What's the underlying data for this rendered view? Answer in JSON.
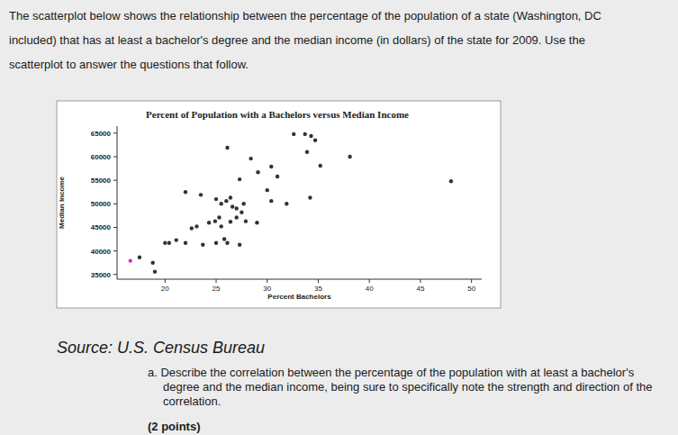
{
  "page": {
    "intro": [
      "The scatterplot below shows the relationship between the percentage of the population of a state (Washington, DC",
      "included) that has at least a bachelor's degree and the median income (in dollars) of the state for 2009. Use the",
      "scatterplot to answer the questions that follow."
    ],
    "source": "Source: U.S. Census Bureau",
    "question": [
      "a. Describe the correlation between the percentage of the population with at least a bachelor's",
      "degree and the median income, being sure to specifically note the strength and direction of the",
      "correlation."
    ],
    "points": "(2 points)"
  },
  "chart_data": {
    "type": "scatter",
    "title": "Percent of Population with a Bachelors versus Median Income",
    "x_label": "Percent Bachelors",
    "y_label": "Median Income",
    "x": [
      16.6,
      17.5,
      18.8,
      19.0,
      20.0,
      20.4,
      21.1,
      22.0,
      22.6,
      23.1,
      23.7,
      24.3,
      24.9,
      25.0,
      25.3,
      25.5,
      25.8,
      26.1,
      26.4,
      26.6,
      27.0,
      27.3,
      22.0,
      23.5,
      25.0,
      25.5,
      26.0,
      26.4,
      27.0,
      27.5,
      29.0,
      26.1,
      27.3,
      27.7,
      28.4,
      29.1,
      30.0,
      30.4,
      30.4,
      31.0,
      31.9,
      32.6,
      33.7,
      34.3,
      34.7,
      33.9,
      35.2,
      34.2,
      38.1,
      48.0,
      27.9
    ],
    "values": [
      37900,
      38650,
      37500,
      35600,
      41700,
      41700,
      42300,
      41700,
      44800,
      45200,
      41300,
      46000,
      46300,
      41700,
      47100,
      45200,
      42500,
      41700,
      46200,
      49400,
      47100,
      41300,
      52500,
      51900,
      51000,
      50000,
      50600,
      51300,
      49000,
      48200,
      46000,
      61900,
      55200,
      50000,
      59600,
      56700,
      52900,
      57900,
      50600,
      55800,
      50000,
      64800,
      64800,
      64400,
      63500,
      61000,
      58100,
      51300,
      60000,
      54800,
      46300
    ],
    "colors": [
      "#cc33cc",
      "#333333",
      "#333333",
      "#333333",
      "#333333",
      "#333333",
      "#333333",
      "#333333",
      "#333333",
      "#333333",
      "#333333",
      "#333333",
      "#333333",
      "#333333",
      "#333333",
      "#333333",
      "#333333",
      "#333333",
      "#333333",
      "#333333",
      "#333333",
      "#333333",
      "#333333",
      "#333333",
      "#333333",
      "#333333",
      "#333333",
      "#333333",
      "#333333",
      "#333333",
      "#333333",
      "#333333",
      "#333333",
      "#333333",
      "#333333",
      "#333333",
      "#333333",
      "#333333",
      "#333333",
      "#333333",
      "#333333",
      "#333333",
      "#333333",
      "#333333",
      "#333333",
      "#333333",
      "#333333",
      "#333333",
      "#333333",
      "#333333",
      "#333333"
    ],
    "xlim": [
      15.3,
      51
    ],
    "ylim": [
      34000,
      66500
    ],
    "xticks": [
      20,
      25,
      30,
      35,
      40,
      45,
      50
    ],
    "yticks": [
      35000,
      40000,
      45000,
      50000,
      55000,
      60000,
      65000
    ],
    "grid": false,
    "marker": "circle"
  }
}
